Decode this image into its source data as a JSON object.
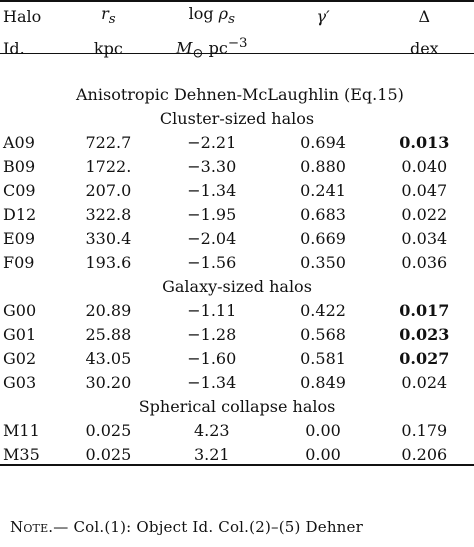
{
  "header": {
    "row1": [
      "Halo",
      "r_s",
      "log ρ_s",
      "γ′",
      "Δ"
    ],
    "row2": [
      "Id.",
      "kpc",
      "M_⊙ pc^−3",
      "",
      "dex"
    ],
    "col1_top": {
      "base": "r",
      "sub": "s"
    },
    "col2_top": {
      "pre": "log ",
      "base": "ρ",
      "sub": "s"
    },
    "col2_bottom": {
      "base": "M",
      "sub": "⊙",
      "unit": " pc",
      "sup": "−3"
    },
    "col3_top": "γ′",
    "col4_top": "Δ"
  },
  "model_title": "Anisotropic Dehnen-McLaughlin (Eq.15)",
  "sections": [
    {
      "title": "Cluster-sized halos",
      "rows": [
        {
          "id": "A09",
          "rs": "722.7",
          "logrho": "−2.21",
          "gamma": "0.694",
          "delta": "0.013",
          "bold": true
        },
        {
          "id": "B09",
          "rs": "1722.",
          "logrho": "−3.30",
          "gamma": "0.880",
          "delta": "0.040",
          "bold": false
        },
        {
          "id": "C09",
          "rs": "207.0",
          "logrho": "−1.34",
          "gamma": "0.241",
          "delta": "0.047",
          "bold": false
        },
        {
          "id": "D12",
          "rs": "322.8",
          "logrho": "−1.95",
          "gamma": "0.683",
          "delta": "0.022",
          "bold": false
        },
        {
          "id": "E09",
          "rs": "330.4",
          "logrho": "−2.04",
          "gamma": "0.669",
          "delta": "0.034",
          "bold": false
        },
        {
          "id": "F09",
          "rs": "193.6",
          "logrho": "−1.56",
          "gamma": "0.350",
          "delta": "0.036",
          "bold": false
        }
      ]
    },
    {
      "title": "Galaxy-sized halos",
      "rows": [
        {
          "id": "G00",
          "rs": "20.89",
          "logrho": "−1.11",
          "gamma": "0.422",
          "delta": "0.017",
          "bold": true
        },
        {
          "id": "G01",
          "rs": "25.88",
          "logrho": "−1.28",
          "gamma": "0.568",
          "delta": "0.023",
          "bold": true
        },
        {
          "id": "G02",
          "rs": "43.05",
          "logrho": "−1.60",
          "gamma": "0.581",
          "delta": "0.027",
          "bold": true
        },
        {
          "id": "G03",
          "rs": "30.20",
          "logrho": "−1.34",
          "gamma": "0.849",
          "delta": "0.024",
          "bold": false
        }
      ]
    },
    {
      "title": "Spherical collapse halos",
      "rows": [
        {
          "id": "M11",
          "rs": "0.025",
          "logrho": "4.23",
          "gamma": "0.00",
          "delta": "0.179",
          "bold": false
        },
        {
          "id": "M35",
          "rs": "0.025",
          "logrho": "3.21",
          "gamma": "0.00",
          "delta": "0.206",
          "bold": false
        }
      ]
    }
  ],
  "note": {
    "label": "Note.",
    "text": "— Col.(1): Object Id. Col.(2)–(5) Dehner"
  }
}
